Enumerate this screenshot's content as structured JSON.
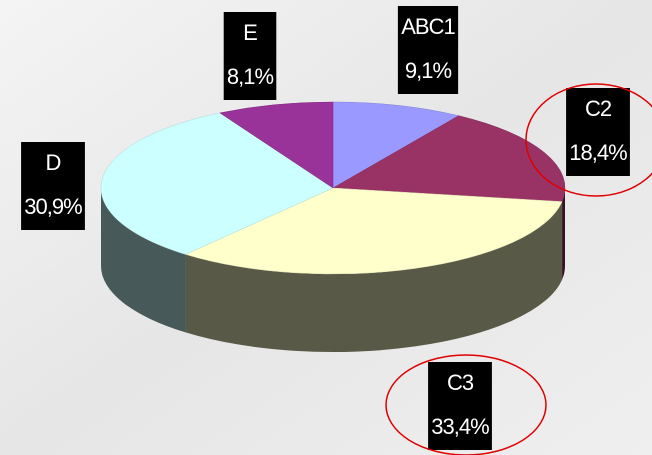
{
  "chart_data": {
    "type": "pie",
    "categories": [
      "ABC1",
      "C2",
      "C3",
      "D",
      "E"
    ],
    "values": [
      9.1,
      18.4,
      33.4,
      30.9,
      8.1
    ],
    "value_labels": [
      "9,1%",
      "18,4%",
      "33,4%",
      "30,9%",
      "8,1%"
    ],
    "colors": [
      "#9999ff",
      "#993366",
      "#ffffcc",
      "#ccffff",
      "#993399"
    ]
  }
}
